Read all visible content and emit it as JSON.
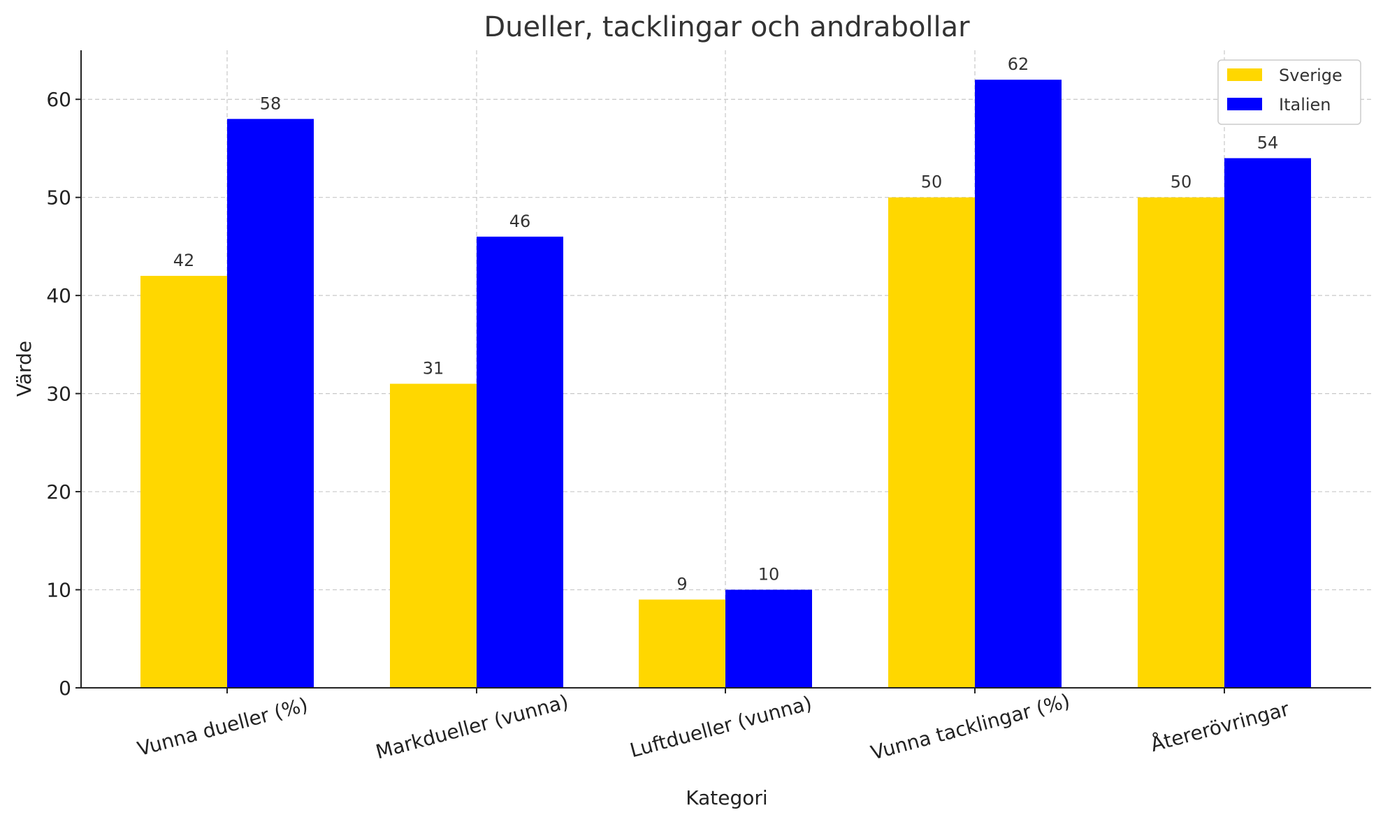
{
  "chart_data": {
    "type": "bar",
    "title": "Dueller, tacklingar och andrabollar",
    "xlabel": "Kategori",
    "ylabel": "Värde",
    "categories": [
      "Vunna dueller (%)",
      "Markdueller (vunna)",
      "Luftdueller (vunna)",
      "Vunna tacklingar (%)",
      "Återerövringar"
    ],
    "series": [
      {
        "name": "Sverige",
        "color": "#FFD700",
        "values": [
          42,
          31,
          9,
          50,
          50
        ]
      },
      {
        "name": "Italien",
        "color": "#0000FF",
        "values": [
          58,
          46,
          10,
          62,
          54
        ]
      }
    ],
    "ylim": [
      0,
      65
    ],
    "yticks": [
      0,
      10,
      20,
      30,
      40,
      50,
      60
    ],
    "grid": true,
    "legend_position": "top-right"
  }
}
